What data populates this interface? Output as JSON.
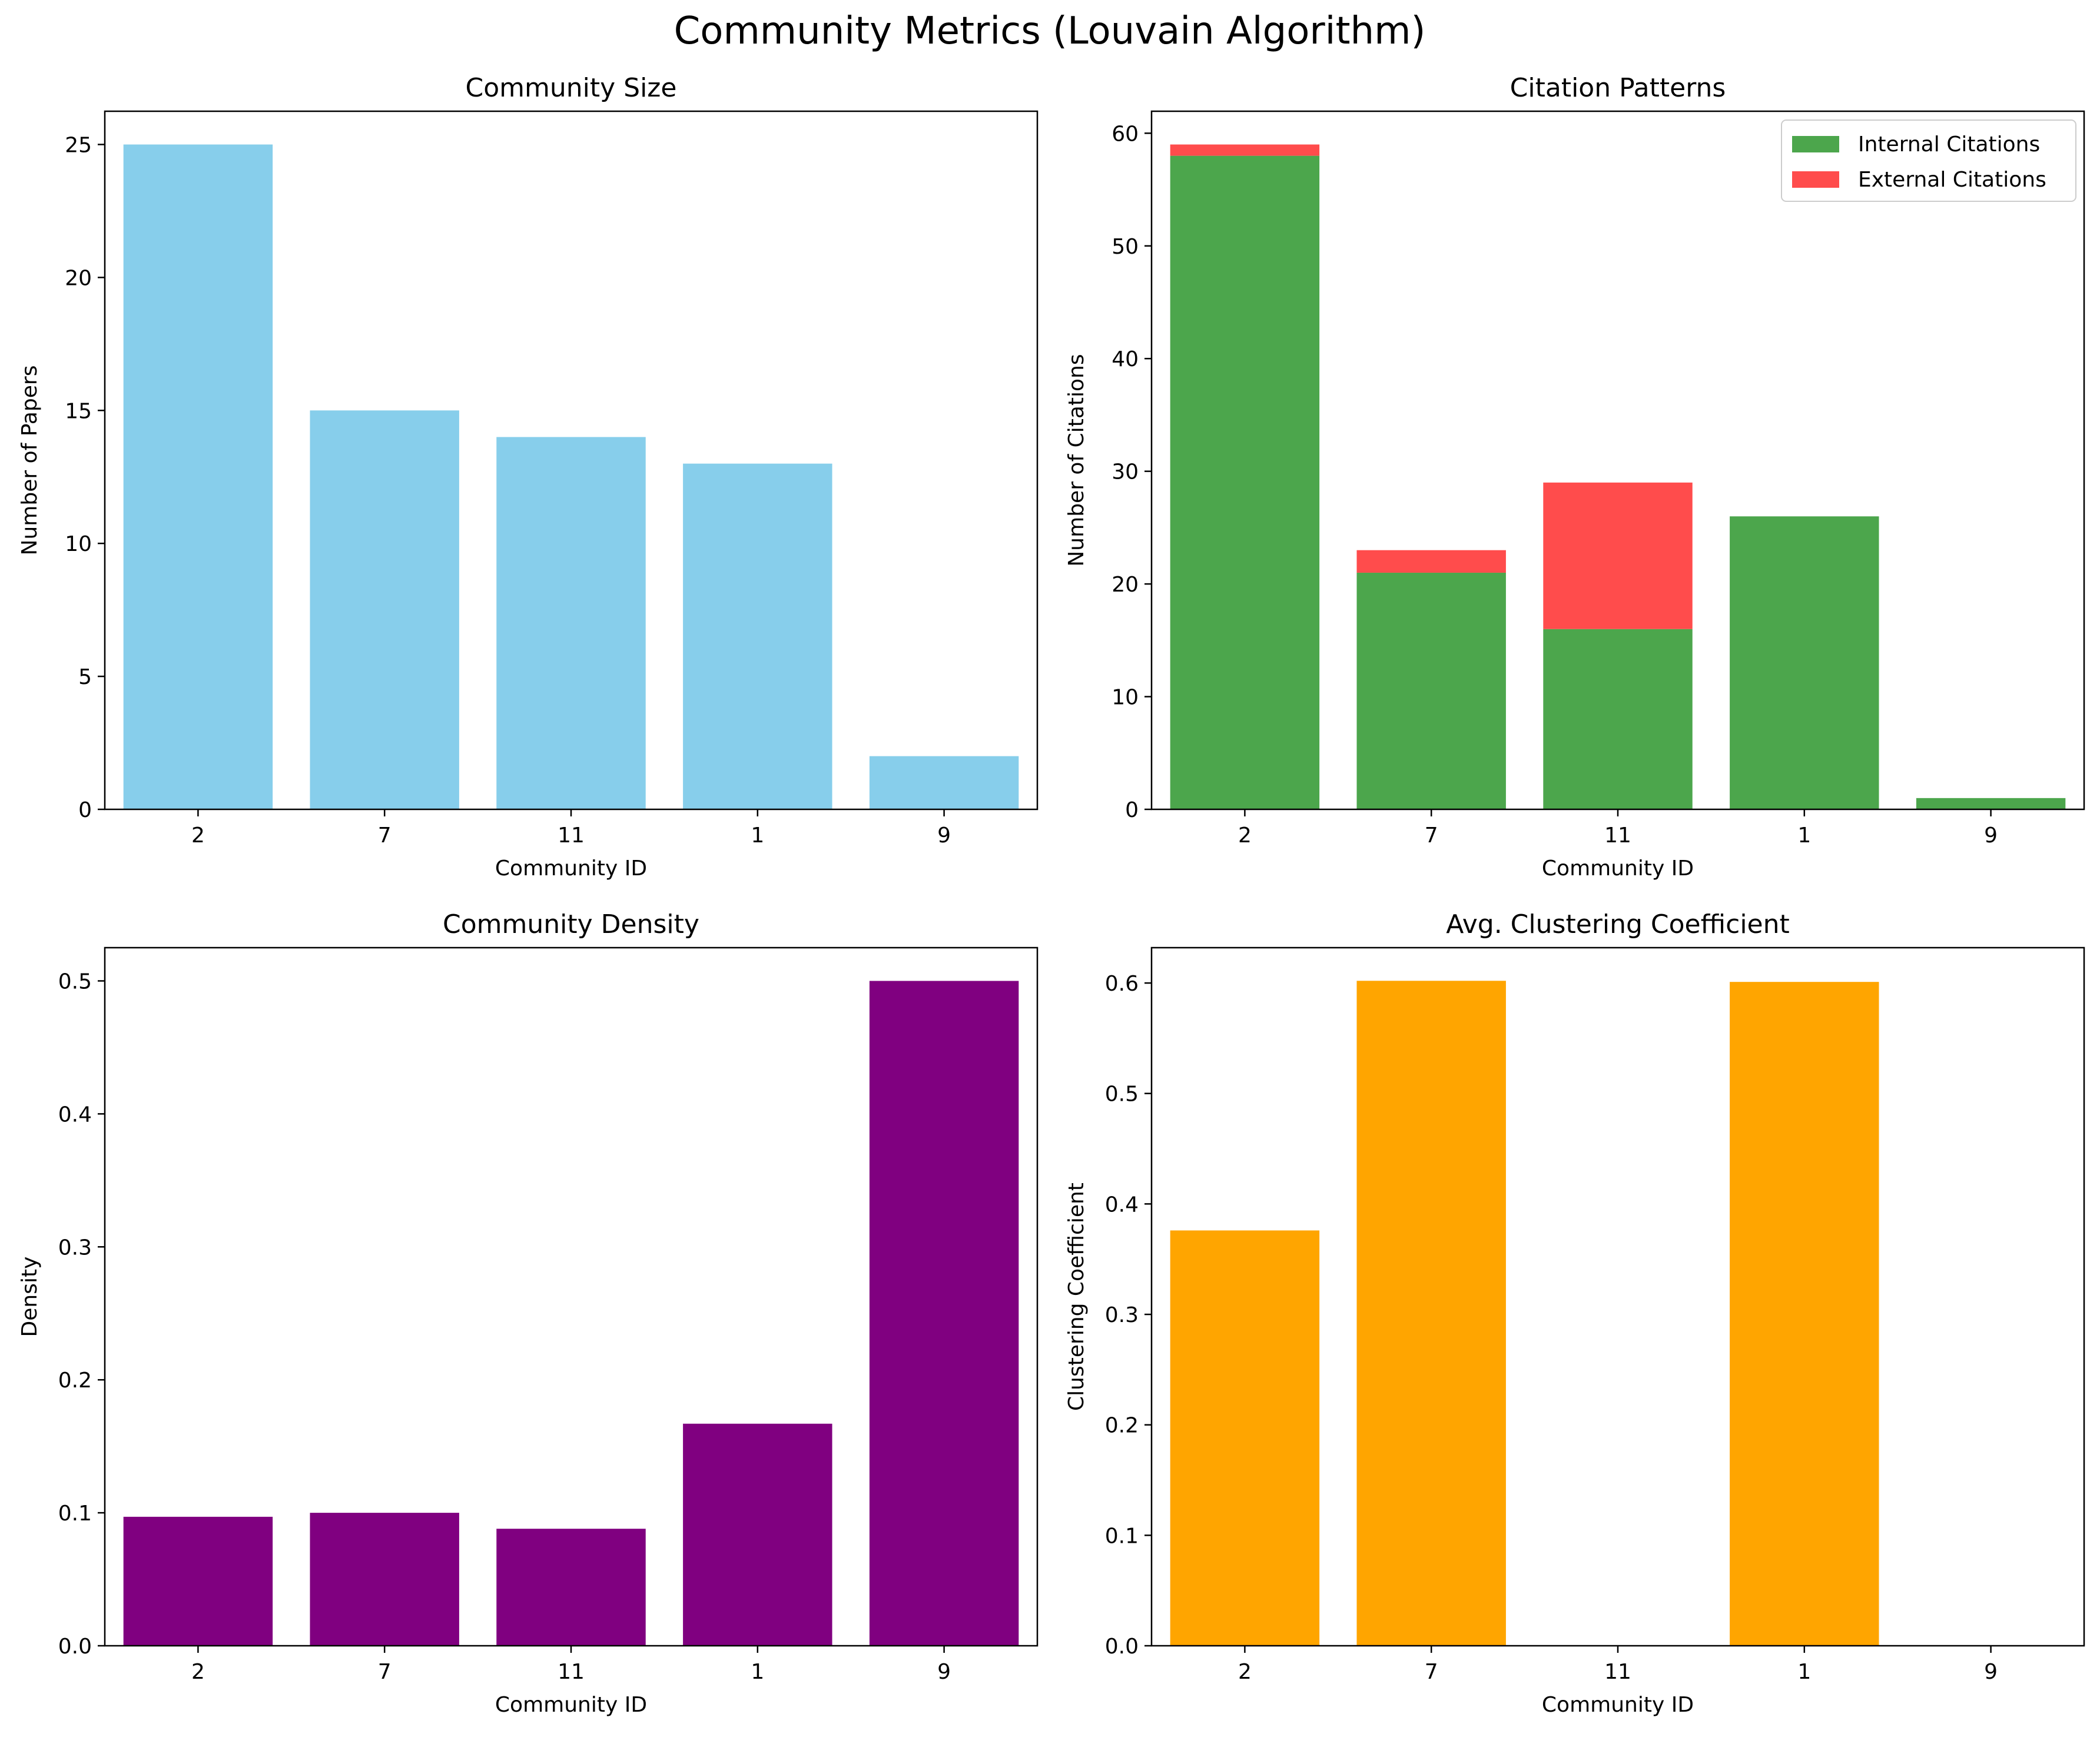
{
  "figure_title": "Community Metrics (Louvain Algorithm)",
  "chart_data": [
    {
      "type": "bar",
      "title": "Community Size",
      "xlabel": "Community ID",
      "ylabel": "Number of Papers",
      "categories": [
        "2",
        "7",
        "11",
        "1",
        "9"
      ],
      "values": [
        25,
        15,
        14,
        13,
        2
      ],
      "ylim": [
        0,
        26.25
      ],
      "yticks": [
        0,
        5,
        10,
        15,
        20,
        25
      ],
      "color": "#87ceeb"
    },
    {
      "type": "bar",
      "stacked": true,
      "title": "Citation Patterns",
      "xlabel": "Community ID",
      "ylabel": "Number of Citations",
      "categories": [
        "2",
        "7",
        "11",
        "1",
        "9"
      ],
      "series": [
        {
          "name": "Internal Citations",
          "values": [
            58,
            21,
            16,
            26,
            1
          ],
          "color": "#4ca64c"
        },
        {
          "name": "External Citations",
          "values": [
            1,
            2,
            13,
            0,
            0
          ],
          "color": "#ff4c4c"
        }
      ],
      "ylim": [
        0,
        61.95
      ],
      "yticks": [
        0,
        10,
        20,
        30,
        40,
        50,
        60
      ],
      "legend": "top-right"
    },
    {
      "type": "bar",
      "title": "Community Density",
      "xlabel": "Community ID",
      "ylabel": "Density",
      "categories": [
        "2",
        "7",
        "11",
        "1",
        "9"
      ],
      "values": [
        0.097,
        0.1,
        0.088,
        0.167,
        0.5
      ],
      "ylim": [
        0,
        0.525
      ],
      "yticks": [
        0.0,
        0.1,
        0.2,
        0.3,
        0.4,
        0.5
      ],
      "tick_decimals": 1,
      "color": "#800080"
    },
    {
      "type": "bar",
      "title": "Avg. Clustering Coefficient",
      "xlabel": "Community ID",
      "ylabel": "Clustering Coefficient",
      "categories": [
        "2",
        "7",
        "11",
        "1",
        "9"
      ],
      "values": [
        0.376,
        0.602,
        0,
        0.601,
        0
      ],
      "ylim": [
        0,
        0.632
      ],
      "yticks": [
        0.0,
        0.1,
        0.2,
        0.3,
        0.4,
        0.5,
        0.6
      ],
      "tick_decimals": 1,
      "color": "#ffa500"
    }
  ]
}
